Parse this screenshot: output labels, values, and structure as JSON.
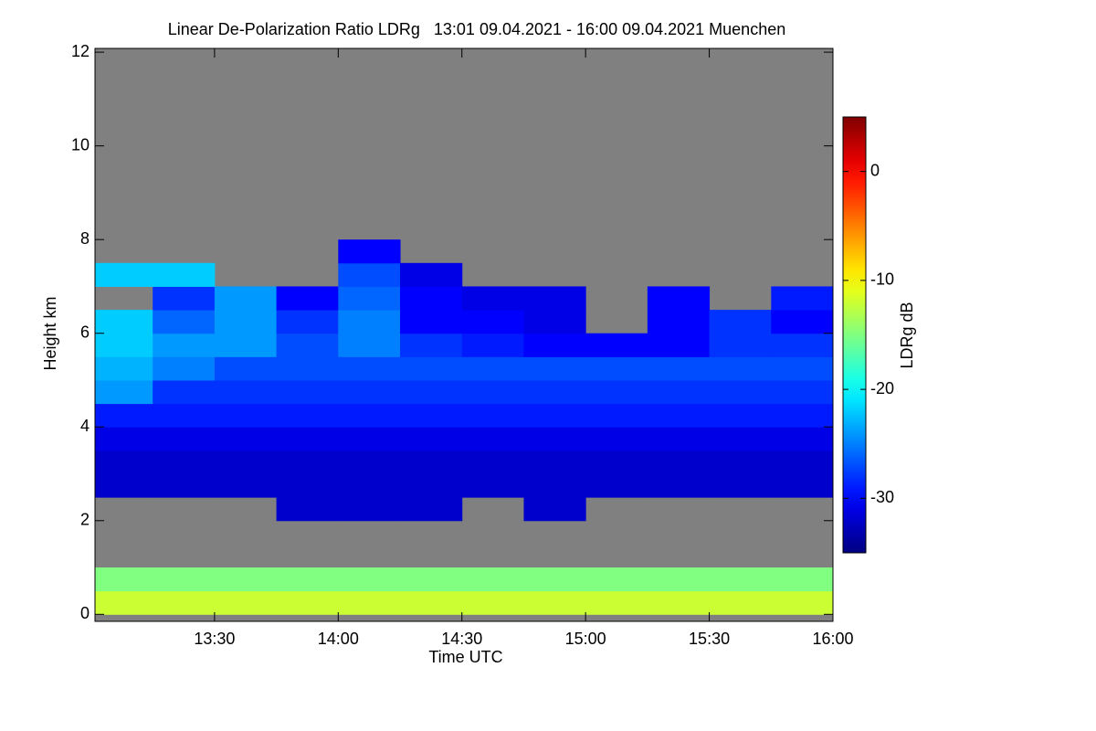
{
  "chart_data": {
    "type": "heatmap",
    "title": "Linear De-Polarization Ratio LDRg   13:01 09.04.2021 - 16:00 09.04.2021 Muenchen",
    "x_label": "Time UTC",
    "y_label": "Height km",
    "colorbar_label": "LDRg dB",
    "colormap": "jet",
    "background": "#808080",
    "xlim": [
      13.0167,
      16.0
    ],
    "xticks": [
      {
        "value": 13.5,
        "label": "13:30"
      },
      {
        "value": 14.0,
        "label": "14:00"
      },
      {
        "value": 14.5,
        "label": "14:30"
      },
      {
        "value": 15.0,
        "label": "15:00"
      },
      {
        "value": 15.5,
        "label": "15:30"
      },
      {
        "value": 16.0,
        "label": "16:00"
      }
    ],
    "ylim": [
      -0.15,
      12.08
    ],
    "yticks": [
      0,
      2,
      4,
      6,
      8,
      10,
      12
    ],
    "zlim": [
      -35,
      5
    ],
    "zticks": [
      0,
      -10,
      -20,
      -30
    ],
    "x_bins": [
      13.0167,
      13.25,
      13.5,
      13.75,
      14.0,
      14.25,
      14.5,
      14.75,
      15.0,
      15.25,
      15.5,
      15.75,
      16.0
    ],
    "y_bins": [
      0,
      0.5,
      1,
      1.5,
      2,
      2.5,
      3,
      3.5,
      4,
      4.5,
      5,
      5.5,
      6,
      6.5,
      7,
      7.5,
      8
    ],
    "z": [
      [
        -12,
        -12,
        -12,
        -12,
        -12,
        -12,
        -12,
        -12,
        -12,
        -12,
        -12,
        -12
      ],
      [
        -15,
        -15,
        -15,
        -15,
        -15,
        -15,
        -15,
        -15,
        -15,
        -15,
        -15,
        -15
      ],
      [
        null,
        null,
        null,
        null,
        null,
        null,
        null,
        null,
        null,
        null,
        null,
        null
      ],
      [
        null,
        null,
        null,
        null,
        null,
        null,
        null,
        null,
        null,
        null,
        null,
        null
      ],
      [
        null,
        null,
        null,
        -32,
        -32,
        -32,
        null,
        -32,
        null,
        null,
        null,
        null
      ],
      [
        -32,
        -32,
        -32,
        -32,
        -32,
        -32,
        -32,
        -32,
        -32,
        -32,
        -32,
        -32
      ],
      [
        -32,
        -32,
        -32,
        -32,
        -32,
        -32,
        -32,
        -32,
        -32,
        -32,
        -32,
        -32
      ],
      [
        -31,
        -31,
        -31,
        -31,
        -31,
        -31,
        -31,
        -31,
        -31,
        -31,
        -31,
        -31
      ],
      [
        -29,
        -29,
        -29,
        -29,
        -29,
        -29,
        -29,
        -29,
        -29,
        -29,
        -29,
        -29
      ],
      [
        -24,
        -28,
        -28,
        -28,
        -28,
        -28,
        -28,
        -28,
        -28,
        -28,
        -28,
        -28
      ],
      [
        -23,
        -25,
        -27,
        -27,
        -27,
        -27,
        -27,
        -27,
        -27,
        -27,
        -27,
        -27
      ],
      [
        -22,
        -24,
        -24,
        -27,
        -25,
        -28,
        -29,
        -30,
        -30,
        -30,
        -28,
        -28
      ],
      [
        -22,
        -26,
        -24,
        -28,
        -25,
        -30,
        -30,
        -31,
        null,
        -30,
        -28,
        -30
      ],
      [
        null,
        -28,
        -24,
        -30,
        -26,
        -30,
        -31,
        -31,
        null,
        -30,
        null,
        -29
      ],
      [
        -22,
        -22,
        null,
        null,
        -27,
        -31,
        null,
        null,
        null,
        null,
        null,
        null
      ],
      [
        null,
        null,
        null,
        null,
        -30,
        null,
        null,
        null,
        null,
        null,
        null,
        null
      ]
    ]
  }
}
